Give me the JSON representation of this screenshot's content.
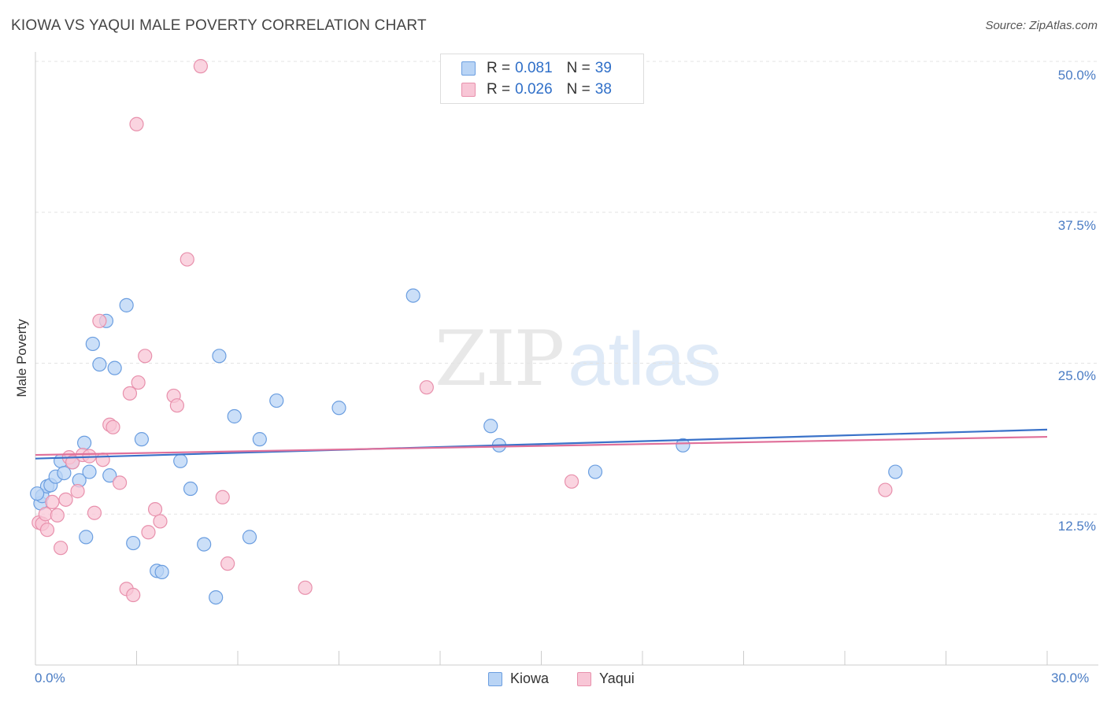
{
  "header": {
    "title": "KIOWA VS YAQUI MALE POVERTY CORRELATION CHART",
    "source": "Source: ZipAtlas.com"
  },
  "watermark": {
    "part1": "ZIP",
    "part2": "atlas"
  },
  "legend": {
    "rows": [
      {
        "r_label": "R =",
        "r_value": "0.081",
        "n_label": "N =",
        "n_value": "39"
      },
      {
        "r_label": "R =",
        "r_value": "0.026",
        "n_label": "N =",
        "n_value": "38"
      }
    ]
  },
  "bottom_legend": {
    "kiowa": "Kiowa",
    "yaqui": "Yaqui"
  },
  "colors": {
    "kiowa_fill": "#b9d4f5",
    "kiowa_stroke": "#6b9ee0",
    "kiowa_line": "#3a72c9",
    "yaqui_fill": "#f8c6d6",
    "yaqui_stroke": "#e890ac",
    "yaqui_line": "#e0709a",
    "axis_text": "#4a7cc4"
  },
  "chart_data": {
    "type": "scatter",
    "title": "KIOWA VS YAQUI MALE POVERTY CORRELATION CHART",
    "xlabel": "",
    "ylabel": "Male Poverty",
    "xlim": [
      0,
      30
    ],
    "ylim": [
      0,
      50
    ],
    "x_tick_labels": [
      "0.0%",
      "30.0%"
    ],
    "y_tick_labels": [
      "12.5%",
      "25.0%",
      "37.5%",
      "50.0%"
    ],
    "y_ticks": [
      12.5,
      25.0,
      37.5,
      50.0
    ],
    "grid": true,
    "series": [
      {
        "name": "Kiowa",
        "trend": {
          "x": [
            0,
            30
          ],
          "y": [
            17.1,
            19.5
          ]
        },
        "points": [
          [
            0.15,
            13.4
          ],
          [
            0.2,
            14.0
          ],
          [
            0.35,
            14.8
          ],
          [
            0.45,
            14.9
          ],
          [
            0.6,
            15.6
          ],
          [
            0.75,
            16.9
          ],
          [
            0.85,
            15.9
          ],
          [
            1.1,
            16.8
          ],
          [
            1.3,
            15.3
          ],
          [
            1.45,
            18.4
          ],
          [
            1.5,
            10.6
          ],
          [
            1.6,
            16.0
          ],
          [
            1.7,
            26.6
          ],
          [
            1.9,
            24.9
          ],
          [
            2.1,
            28.5
          ],
          [
            2.2,
            15.7
          ],
          [
            2.35,
            24.6
          ],
          [
            2.7,
            29.8
          ],
          [
            2.9,
            10.1
          ],
          [
            3.15,
            18.7
          ],
          [
            3.6,
            7.8
          ],
          [
            3.75,
            7.7
          ],
          [
            4.3,
            16.9
          ],
          [
            4.6,
            14.6
          ],
          [
            5.0,
            10.0
          ],
          [
            5.35,
            5.6
          ],
          [
            5.45,
            25.6
          ],
          [
            5.9,
            20.6
          ],
          [
            6.35,
            10.6
          ],
          [
            6.65,
            18.7
          ],
          [
            7.15,
            21.9
          ],
          [
            9.0,
            21.3
          ],
          [
            11.2,
            30.6
          ],
          [
            13.5,
            19.8
          ],
          [
            13.75,
            18.2
          ],
          [
            16.6,
            16.0
          ],
          [
            19.2,
            18.2
          ],
          [
            25.5,
            16.0
          ],
          [
            0.05,
            14.2
          ]
        ]
      },
      {
        "name": "Yaqui",
        "trend": {
          "x": [
            0,
            30
          ],
          "y": [
            17.4,
            18.9
          ]
        },
        "points": [
          [
            0.1,
            11.8
          ],
          [
            0.2,
            11.7
          ],
          [
            0.3,
            12.5
          ],
          [
            0.35,
            11.2
          ],
          [
            0.5,
            13.5
          ],
          [
            0.65,
            12.4
          ],
          [
            0.75,
            9.7
          ],
          [
            0.9,
            13.7
          ],
          [
            1.0,
            17.2
          ],
          [
            1.1,
            16.8
          ],
          [
            1.25,
            14.4
          ],
          [
            1.4,
            17.4
          ],
          [
            1.6,
            17.3
          ],
          [
            1.75,
            12.6
          ],
          [
            1.9,
            28.5
          ],
          [
            2.0,
            17.0
          ],
          [
            2.2,
            19.9
          ],
          [
            2.3,
            19.7
          ],
          [
            2.5,
            15.1
          ],
          [
            2.7,
            6.3
          ],
          [
            2.8,
            22.5
          ],
          [
            2.9,
            5.8
          ],
          [
            3.0,
            44.8
          ],
          [
            3.05,
            23.4
          ],
          [
            3.25,
            25.6
          ],
          [
            3.35,
            11.0
          ],
          [
            3.55,
            12.9
          ],
          [
            3.7,
            11.9
          ],
          [
            4.1,
            22.3
          ],
          [
            4.2,
            21.5
          ],
          [
            4.5,
            33.6
          ],
          [
            4.9,
            49.6
          ],
          [
            5.55,
            13.9
          ],
          [
            5.7,
            8.4
          ],
          [
            8.0,
            6.4
          ],
          [
            11.6,
            23.0
          ],
          [
            15.9,
            15.2
          ],
          [
            25.2,
            14.5
          ]
        ]
      }
    ]
  }
}
